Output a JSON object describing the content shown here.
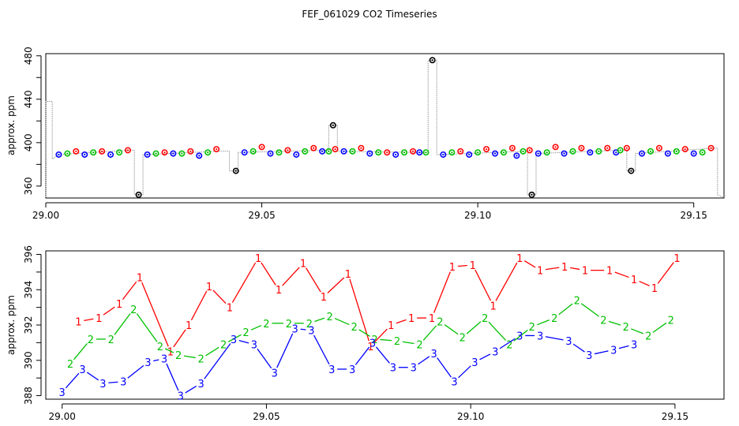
{
  "title": "FEF_061029  CO2 Timeseries",
  "colors": {
    "s1": "#ff0000",
    "s2": "#00c000",
    "s3": "#0000ff",
    "ref": "#000000",
    "trace": "#9a9a9a"
  },
  "chart_data": [
    {
      "type": "scatter",
      "ylabel": "approx. ppm",
      "xlim": [
        29.0,
        29.157
      ],
      "ylim": [
        349,
        482
      ],
      "xticks": [
        "29.00",
        "29.05",
        "29.10",
        "29.15"
      ],
      "yticks": [
        "360",
        "400",
        "440",
        "480"
      ],
      "grid": false,
      "points": [
        {
          "x": 29.003,
          "y": 389,
          "s": 3
        },
        {
          "x": 29.005,
          "y": 390,
          "s": 2
        },
        {
          "x": 29.007,
          "y": 392,
          "s": 1
        },
        {
          "x": 29.009,
          "y": 389,
          "s": 3
        },
        {
          "x": 29.011,
          "y": 391,
          "s": 2
        },
        {
          "x": 29.013,
          "y": 392,
          "s": 1
        },
        {
          "x": 29.015,
          "y": 389,
          "s": 3
        },
        {
          "x": 29.017,
          "y": 391,
          "s": 2
        },
        {
          "x": 29.019,
          "y": 393,
          "s": 1
        },
        {
          "x": 29.0215,
          "y": 352,
          "s": 0
        },
        {
          "x": 29.0235,
          "y": 389,
          "s": 3
        },
        {
          "x": 29.0255,
          "y": 390,
          "s": 2
        },
        {
          "x": 29.0275,
          "y": 391,
          "s": 1
        },
        {
          "x": 29.0295,
          "y": 390,
          "s": 3
        },
        {
          "x": 29.0315,
          "y": 390,
          "s": 2
        },
        {
          "x": 29.0335,
          "y": 392,
          "s": 1
        },
        {
          "x": 29.0355,
          "y": 388,
          "s": 3
        },
        {
          "x": 29.0375,
          "y": 391,
          "s": 2
        },
        {
          "x": 29.0395,
          "y": 394,
          "s": 1
        },
        {
          "x": 29.044,
          "y": 374,
          "s": 0
        },
        {
          "x": 29.046,
          "y": 391,
          "s": 3
        },
        {
          "x": 29.048,
          "y": 392,
          "s": 2
        },
        {
          "x": 29.05,
          "y": 396,
          "s": 1
        },
        {
          "x": 29.052,
          "y": 390,
          "s": 3
        },
        {
          "x": 29.054,
          "y": 391,
          "s": 2
        },
        {
          "x": 29.056,
          "y": 393,
          "s": 1
        },
        {
          "x": 29.058,
          "y": 389,
          "s": 3
        },
        {
          "x": 29.06,
          "y": 392,
          "s": 2
        },
        {
          "x": 29.062,
          "y": 395,
          "s": 1
        },
        {
          "x": 29.064,
          "y": 392,
          "s": 3
        },
        {
          "x": 29.0655,
          "y": 392,
          "s": 2
        },
        {
          "x": 29.067,
          "y": 394,
          "s": 1
        },
        {
          "x": 29.0665,
          "y": 416,
          "s": 0
        },
        {
          "x": 29.069,
          "y": 392,
          "s": 3
        },
        {
          "x": 29.071,
          "y": 392,
          "s": 2
        },
        {
          "x": 29.073,
          "y": 395,
          "s": 1
        },
        {
          "x": 29.075,
          "y": 390,
          "s": 3
        },
        {
          "x": 29.077,
          "y": 391,
          "s": 2
        },
        {
          "x": 29.079,
          "y": 391,
          "s": 1
        },
        {
          "x": 29.081,
          "y": 389,
          "s": 3
        },
        {
          "x": 29.083,
          "y": 391,
          "s": 2
        },
        {
          "x": 29.085,
          "y": 392,
          "s": 1
        },
        {
          "x": 29.0865,
          "y": 391,
          "s": 3
        },
        {
          "x": 29.088,
          "y": 391,
          "s": 2
        },
        {
          "x": 29.0895,
          "y": 476,
          "s": 0
        },
        {
          "x": 29.092,
          "y": 389,
          "s": 3
        },
        {
          "x": 29.094,
          "y": 391,
          "s": 2
        },
        {
          "x": 29.096,
          "y": 392,
          "s": 1
        },
        {
          "x": 29.098,
          "y": 389,
          "s": 3
        },
        {
          "x": 29.1,
          "y": 391,
          "s": 2
        },
        {
          "x": 29.102,
          "y": 394,
          "s": 1
        },
        {
          "x": 29.104,
          "y": 390,
          "s": 3
        },
        {
          "x": 29.106,
          "y": 391,
          "s": 2
        },
        {
          "x": 29.108,
          "y": 395,
          "s": 1
        },
        {
          "x": 29.109,
          "y": 388,
          "s": 3
        },
        {
          "x": 29.1105,
          "y": 392,
          "s": 2
        },
        {
          "x": 29.112,
          "y": 393,
          "s": 1
        },
        {
          "x": 29.1125,
          "y": 352,
          "s": 0
        },
        {
          "x": 29.114,
          "y": 390,
          "s": 3
        },
        {
          "x": 29.116,
          "y": 391,
          "s": 2
        },
        {
          "x": 29.118,
          "y": 396,
          "s": 1
        },
        {
          "x": 29.12,
          "y": 390,
          "s": 3
        },
        {
          "x": 29.122,
          "y": 392,
          "s": 2
        },
        {
          "x": 29.124,
          "y": 395,
          "s": 1
        },
        {
          "x": 29.126,
          "y": 391,
          "s": 3
        },
        {
          "x": 29.128,
          "y": 392,
          "s": 2
        },
        {
          "x": 29.13,
          "y": 395,
          "s": 1
        },
        {
          "x": 29.132,
          "y": 391,
          "s": 3
        },
        {
          "x": 29.133,
          "y": 393,
          "s": 2
        },
        {
          "x": 29.1345,
          "y": 395,
          "s": 1
        },
        {
          "x": 29.1355,
          "y": 374,
          "s": 0
        },
        {
          "x": 29.138,
          "y": 390,
          "s": 3
        },
        {
          "x": 29.14,
          "y": 392,
          "s": 2
        },
        {
          "x": 29.142,
          "y": 395,
          "s": 1
        },
        {
          "x": 29.144,
          "y": 390,
          "s": 3
        },
        {
          "x": 29.146,
          "y": 392,
          "s": 2
        },
        {
          "x": 29.148,
          "y": 394,
          "s": 1
        },
        {
          "x": 29.15,
          "y": 390,
          "s": 3
        },
        {
          "x": 29.152,
          "y": 391,
          "s": 2
        },
        {
          "x": 29.154,
          "y": 395,
          "s": 1
        }
      ],
      "trace": [
        [
          29.0,
          350
        ],
        [
          29.0,
          438
        ],
        [
          29.0015,
          438
        ],
        [
          29.0015,
          385
        ],
        [
          29.003,
          389
        ],
        [
          29.019,
          393
        ],
        [
          29.0205,
          393
        ],
        [
          29.0205,
          352
        ],
        [
          29.0215,
          352
        ],
        [
          29.0225,
          352
        ],
        [
          29.0225,
          389
        ],
        [
          29.0395,
          392
        ],
        [
          29.0425,
          392
        ],
        [
          29.0425,
          374
        ],
        [
          29.0445,
          374
        ],
        [
          29.0445,
          391
        ],
        [
          29.0645,
          393
        ],
        [
          29.0655,
          393
        ],
        [
          29.0655,
          416
        ],
        [
          29.0675,
          416
        ],
        [
          29.0675,
          392
        ],
        [
          29.087,
          391
        ],
        [
          29.0885,
          391
        ],
        [
          29.0885,
          476
        ],
        [
          29.0905,
          476
        ],
        [
          29.0905,
          389
        ],
        [
          29.111,
          392
        ],
        [
          29.1115,
          392
        ],
        [
          29.1115,
          352
        ],
        [
          29.1135,
          352
        ],
        [
          29.1135,
          390
        ],
        [
          29.133,
          393
        ],
        [
          29.1345,
          393
        ],
        [
          29.1345,
          374
        ],
        [
          29.1365,
          374
        ],
        [
          29.1365,
          390
        ],
        [
          29.155,
          395
        ],
        [
          29.1555,
          395
        ],
        [
          29.1555,
          352
        ],
        [
          29.1565,
          350
        ],
        [
          29.1575,
          351
        ]
      ]
    },
    {
      "type": "line",
      "ylabel": "approx. ppm",
      "xlim": [
        28.996,
        29.162
      ],
      "ylim": [
        387.8,
        396.2
      ],
      "xticks": [
        "29.00",
        "29.05",
        "29.10",
        "29.15"
      ],
      "yticks": [
        "388",
        "390",
        "392",
        "394",
        "396"
      ],
      "grid": false,
      "series": [
        {
          "name": "1",
          "color": "#ff0000",
          "points": [
            [
              29.004,
              392.2
            ],
            [
              29.009,
              392.4
            ],
            [
              29.014,
              393.2
            ],
            [
              29.019,
              394.7
            ],
            [
              29.0265,
              390.5
            ],
            [
              29.031,
              392.0
            ],
            [
              29.036,
              394.2
            ],
            [
              29.041,
              393.0
            ],
            [
              29.048,
              395.8
            ],
            [
              29.053,
              394.0
            ],
            [
              29.059,
              395.5
            ],
            [
              29.064,
              393.6
            ],
            [
              29.07,
              394.9
            ],
            [
              29.0755,
              390.8
            ],
            [
              29.0805,
              392.0
            ],
            [
              29.0855,
              392.4
            ],
            [
              29.0905,
              392.4
            ],
            [
              29.0955,
              395.3
            ],
            [
              29.1005,
              395.4
            ],
            [
              29.1055,
              393.1
            ],
            [
              29.112,
              395.8
            ],
            [
              29.117,
              395.1
            ],
            [
              29.123,
              395.3
            ],
            [
              29.128,
              395.1
            ],
            [
              29.134,
              395.1
            ],
            [
              29.14,
              394.6
            ],
            [
              29.145,
              394.1
            ],
            [
              29.1505,
              395.8
            ]
          ]
        },
        {
          "name": "2",
          "color": "#00c000",
          "points": [
            [
              29.002,
              389.8
            ],
            [
              29.007,
              391.2
            ],
            [
              29.012,
              391.2
            ],
            [
              29.0175,
              392.9
            ],
            [
              29.024,
              390.8
            ],
            [
              29.0285,
              390.3
            ],
            [
              29.034,
              390.1
            ],
            [
              29.0395,
              390.9
            ],
            [
              29.045,
              391.6
            ],
            [
              29.05,
              392.1
            ],
            [
              29.0555,
              392.1
            ],
            [
              29.0605,
              392.1
            ],
            [
              29.0655,
              392.5
            ],
            [
              29.0715,
              391.9
            ],
            [
              29.0765,
              391.2
            ],
            [
              29.082,
              391.1
            ],
            [
              29.0875,
              390.9
            ],
            [
              29.0925,
              392.2
            ],
            [
              29.098,
              391.3
            ],
            [
              29.1035,
              392.4
            ],
            [
              29.1095,
              390.9
            ],
            [
              29.115,
              391.9
            ],
            [
              29.1205,
              392.4
            ],
            [
              29.126,
              393.4
            ],
            [
              29.1325,
              392.3
            ],
            [
              29.138,
              391.9
            ],
            [
              29.1435,
              391.4
            ],
            [
              29.149,
              392.3
            ]
          ]
        },
        {
          "name": "3",
          "color": "#0000ff",
          "points": [
            [
              29.0,
              388.2
            ],
            [
              29.005,
              389.5
            ],
            [
              29.01,
              388.7
            ],
            [
              29.015,
              388.8
            ],
            [
              29.021,
              389.9
            ],
            [
              29.025,
              390.1
            ],
            [
              29.029,
              388.0
            ],
            [
              29.034,
              388.7
            ],
            [
              29.042,
              391.2
            ],
            [
              29.047,
              390.9
            ],
            [
              29.052,
              389.3
            ],
            [
              29.057,
              391.8
            ],
            [
              29.061,
              391.7
            ],
            [
              29.066,
              389.5
            ],
            [
              29.071,
              389.5
            ],
            [
              29.076,
              391.0
            ],
            [
              29.081,
              389.6
            ],
            [
              29.086,
              389.6
            ],
            [
              29.091,
              390.4
            ],
            [
              29.096,
              388.8
            ],
            [
              29.101,
              389.9
            ],
            [
              29.106,
              390.5
            ],
            [
              29.112,
              391.4
            ],
            [
              29.117,
              391.4
            ],
            [
              29.124,
              391.1
            ],
            [
              29.129,
              390.3
            ],
            [
              29.135,
              390.6
            ],
            [
              29.14,
              390.9
            ]
          ]
        }
      ]
    }
  ]
}
